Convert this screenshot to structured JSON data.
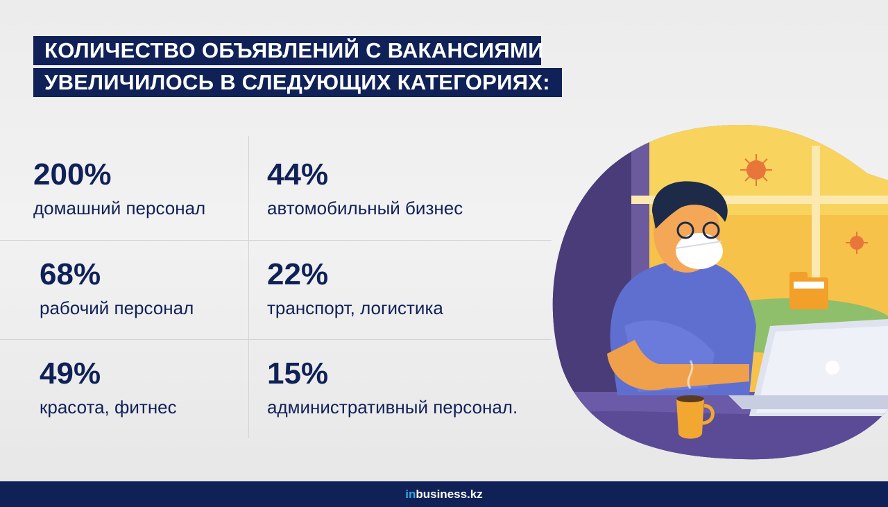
{
  "title": {
    "line1": "КОЛИЧЕСТВО ОБЪЯВЛЕНИЙ С ВАКАНСИЯМИ",
    "line2": "УВЕЛИЧИЛОСЬ В СЛЕДУЮЩИХ КАТЕГОРИЯХ:"
  },
  "stats": [
    {
      "percent": "200%",
      "label": "домашний персонал"
    },
    {
      "percent": "44%",
      "label": "автомобильный бизнес"
    },
    {
      "percent": "68%",
      "label": "рабочий персонал"
    },
    {
      "percent": "22%",
      "label": "транспорт, логистика"
    },
    {
      "percent": "49%",
      "label": "красота, фитнес"
    },
    {
      "percent": "15%",
      "label": "административный персонал."
    }
  ],
  "footer": {
    "logo_prefix": "in",
    "logo_main": "business.kz"
  },
  "colors": {
    "navy": "#0f2157",
    "background": "#ececec",
    "accent_logo": "#2fa8e0"
  },
  "illustration": {
    "icon": "man-in-mask-working-at-laptop-illustration"
  }
}
